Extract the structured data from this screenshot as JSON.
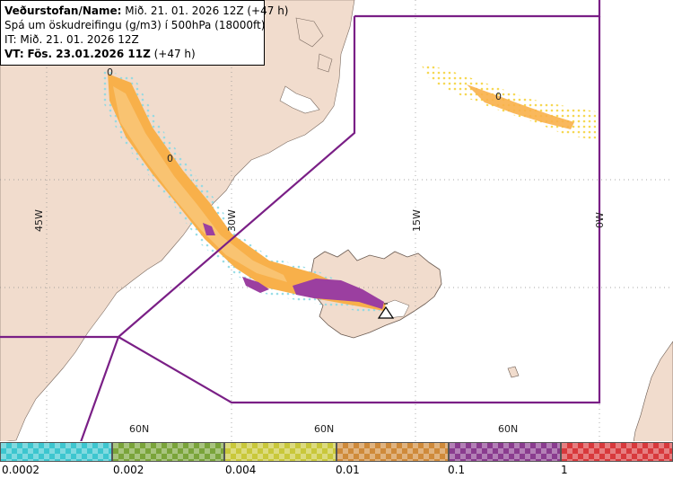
{
  "info": {
    "org_label": "Veðurstofan/Name:",
    "org_value": "Mið. 21. 01. 2026 12Z (+47 h)",
    "forecast_title": "Spá um öskudreifingu (g/m3) í 500hPa (18000ft)",
    "issue_time": "IT: Mið. 21. 01. 2026 12Z",
    "valid_label": "VT:",
    "valid_value": "Fös. 23.01.2026 11Z",
    "valid_offset": "(+47 h)"
  },
  "map": {
    "longitude_labels": [
      "45W",
      "30W",
      "15W",
      "0W"
    ],
    "latitude_labels": [
      "60N",
      "60N",
      "60N"
    ],
    "contour_labels": [
      "0",
      "0",
      "0"
    ],
    "colors": {
      "land": "#f1dccd",
      "sea": "#ffffff",
      "boundary": "#7a1f86",
      "ash_orange": "#f8b04a",
      "ash_light": "#f9c87a",
      "ash_purple": "#9b3fa0",
      "ash_cyan": "#8fd9e3"
    }
  },
  "legend": {
    "colors": [
      "#3dc6cf",
      "#7aa43a",
      "#c9c83a",
      "#cf8a3a",
      "#8a3c8f",
      "#d8393c"
    ],
    "ticks": [
      "0.0002",
      "0.002",
      "0.004",
      "0.01",
      "0.1",
      "1"
    ]
  }
}
